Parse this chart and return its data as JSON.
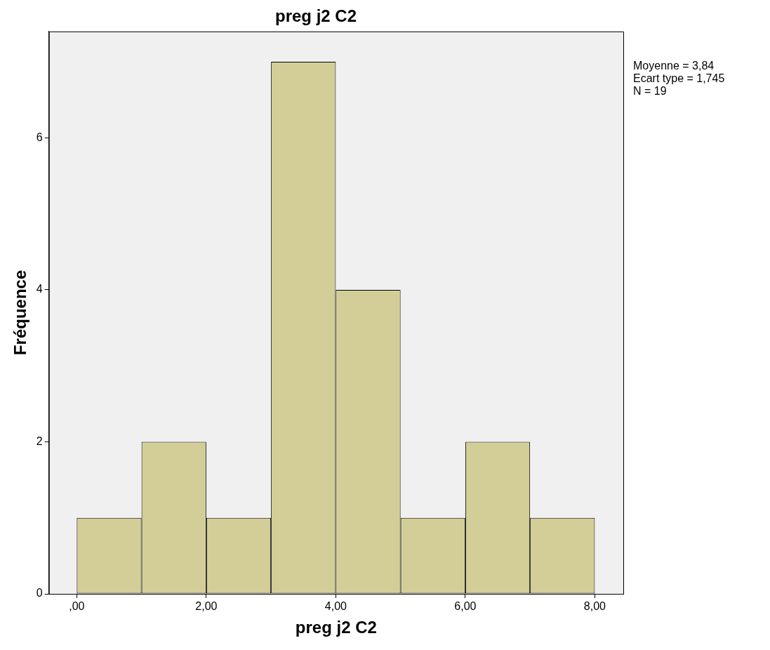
{
  "chart_data": {
    "type": "histogram",
    "title": "preg j2 C2",
    "xlabel": "preg j2 C2",
    "ylabel": "Fréquence",
    "bins": [
      0,
      1,
      2,
      3,
      4,
      5,
      6,
      7,
      8
    ],
    "values": [
      1,
      2,
      1,
      7,
      4,
      1,
      2,
      1
    ],
    "color": "#d3ce97",
    "xlim": [
      -0.43,
      8.44
    ],
    "xticks": [
      {
        "value": 0,
        "label": ",00"
      },
      {
        "value": 2,
        "label": "2,00"
      },
      {
        "value": 4,
        "label": "4,00"
      },
      {
        "value": 6,
        "label": "6,00"
      },
      {
        "value": 8,
        "label": "8,00"
      }
    ],
    "ylim": [
      0,
      7.4
    ],
    "yticks": [
      0,
      2,
      4,
      6
    ],
    "grid": false,
    "legend": false,
    "annotations": [
      "Moyenne = 3,84",
      "Ecart type = 1,745",
      "N = 19"
    ]
  }
}
